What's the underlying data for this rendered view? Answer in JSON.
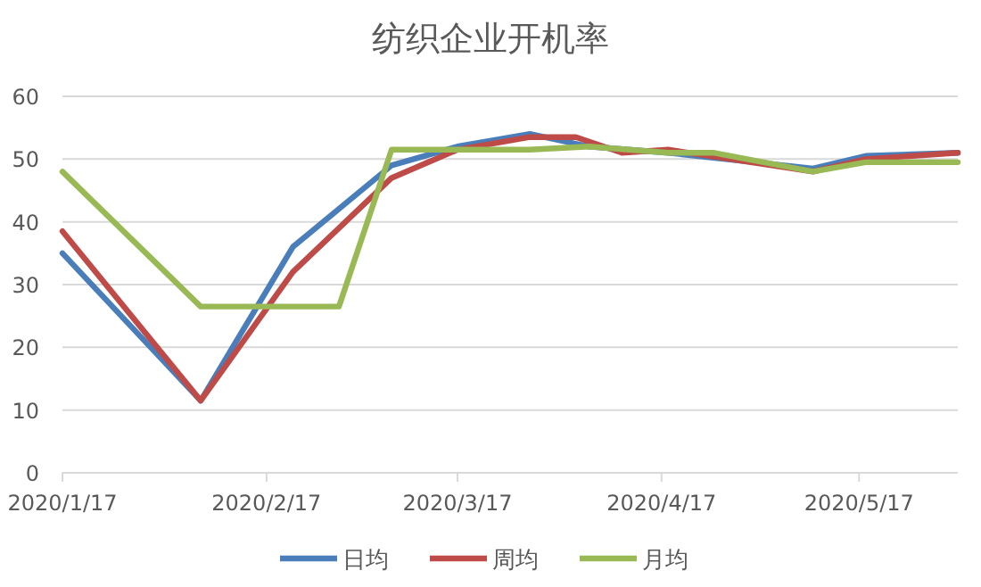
{
  "chart_data": {
    "type": "line",
    "title": "纺织企业开机率",
    "xlim": [
      "2020-01-17",
      "2020-06-01"
    ],
    "xticks": [
      {
        "value": "2020-01-17",
        "label": "2020/1/17"
      },
      {
        "value": "2020-02-17",
        "label": "2020/2/17"
      },
      {
        "value": "2020-03-17",
        "label": "2020/3/17"
      },
      {
        "value": "2020-04-17",
        "label": "2020/4/17"
      },
      {
        "value": "2020-05-17",
        "label": "2020/5/17"
      }
    ],
    "ylim": [
      0,
      60
    ],
    "yticks": [
      0,
      10,
      20,
      30,
      40,
      50,
      60
    ],
    "grid": "y",
    "legend": "bottom",
    "line_style": "solid",
    "marker": "none",
    "series": [
      {
        "name": "日均",
        "color": "#4a7ebb",
        "x": [
          "2020-01-17",
          "2020-02-07",
          "2020-02-21",
          "2020-03-07",
          "2020-03-17",
          "2020-03-28",
          "2020-04-06",
          "2020-04-18",
          "2020-05-10",
          "2020-05-18",
          "2020-06-01"
        ],
        "values": [
          35,
          11.5,
          36,
          49,
          52,
          54,
          52,
          51,
          48.5,
          50.5,
          51
        ]
      },
      {
        "name": "周均",
        "color": "#be4b48",
        "x": [
          "2020-01-17",
          "2020-02-07",
          "2020-02-21",
          "2020-03-07",
          "2020-03-17",
          "2020-03-28",
          "2020-04-04",
          "2020-04-11",
          "2020-04-18",
          "2020-05-10",
          "2020-05-18",
          "2020-06-01"
        ],
        "values": [
          38.5,
          11.5,
          32,
          47,
          51.5,
          53.5,
          53.5,
          51,
          51.5,
          48,
          50,
          51
        ]
      },
      {
        "name": "月均",
        "color": "#98b954",
        "x": [
          "2020-01-17",
          "2020-02-07",
          "2020-02-28",
          "2020-03-07",
          "2020-03-28",
          "2020-04-06",
          "2020-04-18",
          "2020-04-25",
          "2020-05-10",
          "2020-05-18",
          "2020-06-01"
        ],
        "values": [
          48,
          26.5,
          26.5,
          51.5,
          51.5,
          52,
          51,
          51,
          48,
          49.5,
          49.5
        ]
      }
    ]
  }
}
